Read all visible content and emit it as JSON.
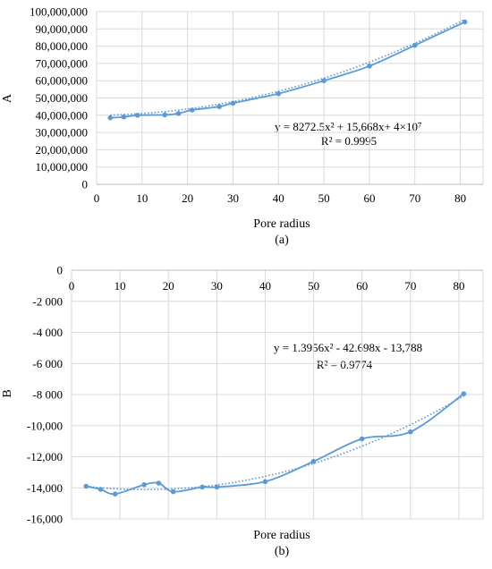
{
  "chart_data": [
    {
      "type": "line",
      "ylabel": "A",
      "xlabel": "Pore radius",
      "caption": "(a)",
      "x_ticks": [
        "0",
        "10",
        "20",
        "30",
        "40",
        "50",
        "60",
        "70",
        "80"
      ],
      "y_ticks": [
        "0",
        "10,000,000",
        "20,000,000",
        "30,000,000",
        "40,000,000",
        "50,000,000",
        "60,000,000",
        "70,000,000",
        "80,000,000",
        "90,000,000",
        "100,000,000"
      ],
      "xlim": [
        0,
        85
      ],
      "ylim": [
        0,
        100000000
      ],
      "grid": true,
      "equation": "y = 8272.5x² + 15,668x+ 4×10⁷",
      "r_squared": "R² = 0.9995",
      "trendline": {
        "type": "polynomial",
        "a": 8272.5,
        "b": 15668,
        "c": 40000000
      },
      "series": [
        {
          "x": [
            3,
            6,
            9,
            15,
            18,
            21,
            27,
            30,
            40,
            50,
            60,
            70,
            81
          ],
          "values": [
            38500000,
            39000000,
            40000000,
            40200000,
            41000000,
            43000000,
            45000000,
            47000000,
            52500000,
            60000000,
            68500000,
            80500000,
            94000000
          ]
        }
      ],
      "colors": {
        "line": "#5b9bd5",
        "grid": "#d9d9d9"
      }
    },
    {
      "type": "line",
      "ylabel": "B",
      "xlabel": "Pore radius",
      "caption": "(b)",
      "x_ticks": [
        "0",
        "10",
        "20",
        "30",
        "40",
        "50",
        "60",
        "70",
        "80"
      ],
      "y_ticks": [
        "0",
        "-2 000",
        "-4 000",
        "-6 000",
        "-8 000",
        "-10,000",
        "-12,000",
        "-14,000",
        "-16,000"
      ],
      "xlim": [
        0,
        85
      ],
      "ylim": [
        -16000,
        0
      ],
      "grid": true,
      "equation": "y = 1.3956x² - 42.698x - 13,788",
      "r_squared": "R² = 0.9774",
      "trendline": {
        "type": "polynomial",
        "a": 1.3956,
        "b": -42.698,
        "c": -13788
      },
      "series": [
        {
          "x": [
            3,
            6,
            9,
            15,
            18,
            21,
            27,
            30,
            40,
            50,
            60,
            70,
            81
          ],
          "values": [
            -13900,
            -14100,
            -14400,
            -13800,
            -13700,
            -14250,
            -13950,
            -13950,
            -13600,
            -12300,
            -10850,
            -10400,
            -7950
          ]
        }
      ],
      "colors": {
        "line": "#5b9bd5",
        "grid": "#d9d9d9"
      }
    }
  ]
}
